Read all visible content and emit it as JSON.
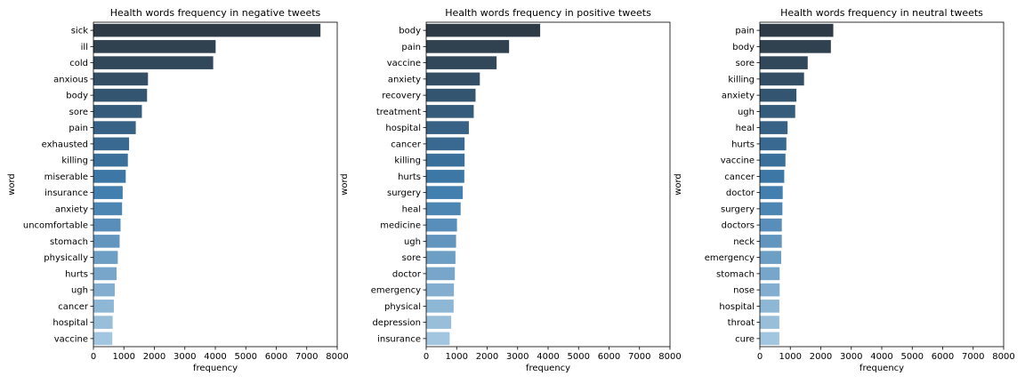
{
  "chart_data": [
    {
      "type": "bar",
      "orientation": "horizontal",
      "title": "Health words frequency in negative tweets",
      "xlabel": "frequency",
      "ylabel": "word",
      "xlim": [
        0,
        8000
      ],
      "xticks": [
        0,
        1000,
        2000,
        3000,
        4000,
        5000,
        6000,
        7000,
        8000
      ],
      "categories": [
        "sick",
        "ill",
        "cold",
        "anxious",
        "body",
        "sore",
        "pain",
        "exhausted",
        "killing",
        "miserable",
        "insurance",
        "anxiety",
        "uncomfortable",
        "stomach",
        "physically",
        "hurts",
        "ugh",
        "cancer",
        "hospital",
        "vaccine"
      ],
      "values": [
        7450,
        4010,
        3930,
        1790,
        1760,
        1590,
        1390,
        1170,
        1130,
        1060,
        960,
        940,
        890,
        860,
        800,
        760,
        700,
        670,
        630,
        620
      ],
      "palette": "Blues_d",
      "grid": false
    },
    {
      "type": "bar",
      "orientation": "horizontal",
      "title": "Health words frequency in positive tweets",
      "xlabel": "frequency",
      "ylabel": "word",
      "xlim": [
        0,
        8000
      ],
      "xticks": [
        0,
        1000,
        2000,
        3000,
        4000,
        5000,
        6000,
        7000,
        8000
      ],
      "categories": [
        "body",
        "pain",
        "vaccine",
        "anxiety",
        "recovery",
        "treatment",
        "hospital",
        "cancer",
        "killing",
        "hurts",
        "surgery",
        "heal",
        "medicine",
        "ugh",
        "sore",
        "doctor",
        "emergency",
        "physical",
        "depression",
        "insurance"
      ],
      "values": [
        3740,
        2720,
        2310,
        1760,
        1620,
        1560,
        1400,
        1260,
        1260,
        1250,
        1200,
        1130,
        1010,
        980,
        960,
        940,
        910,
        900,
        820,
        770
      ],
      "palette": "Blues_d",
      "grid": false
    },
    {
      "type": "bar",
      "orientation": "horizontal",
      "title": "Health words frequency in neutral tweets",
      "xlabel": "frequency",
      "ylabel": "word",
      "xlim": [
        0,
        8000
      ],
      "xticks": [
        0,
        1000,
        2000,
        3000,
        4000,
        5000,
        6000,
        7000,
        8000
      ],
      "categories": [
        "pain",
        "body",
        "sore",
        "killing",
        "anxiety",
        "ugh",
        "heal",
        "hurts",
        "vaccine",
        "cancer",
        "doctor",
        "surgery",
        "doctors",
        "neck",
        "emergency",
        "stomach",
        "nose",
        "hospital",
        "throat",
        "cure"
      ],
      "values": [
        2410,
        2330,
        1570,
        1450,
        1200,
        1160,
        910,
        870,
        840,
        800,
        750,
        740,
        720,
        720,
        700,
        650,
        650,
        640,
        640,
        640
      ],
      "palette": "Blues_d",
      "grid": false
    }
  ],
  "colors": {
    "gradient_dark": "#2e3a45",
    "gradient_mid": "#3d7aab",
    "gradient_light": "#a3c6e0",
    "axis": "#000000",
    "background": "#ffffff"
  }
}
